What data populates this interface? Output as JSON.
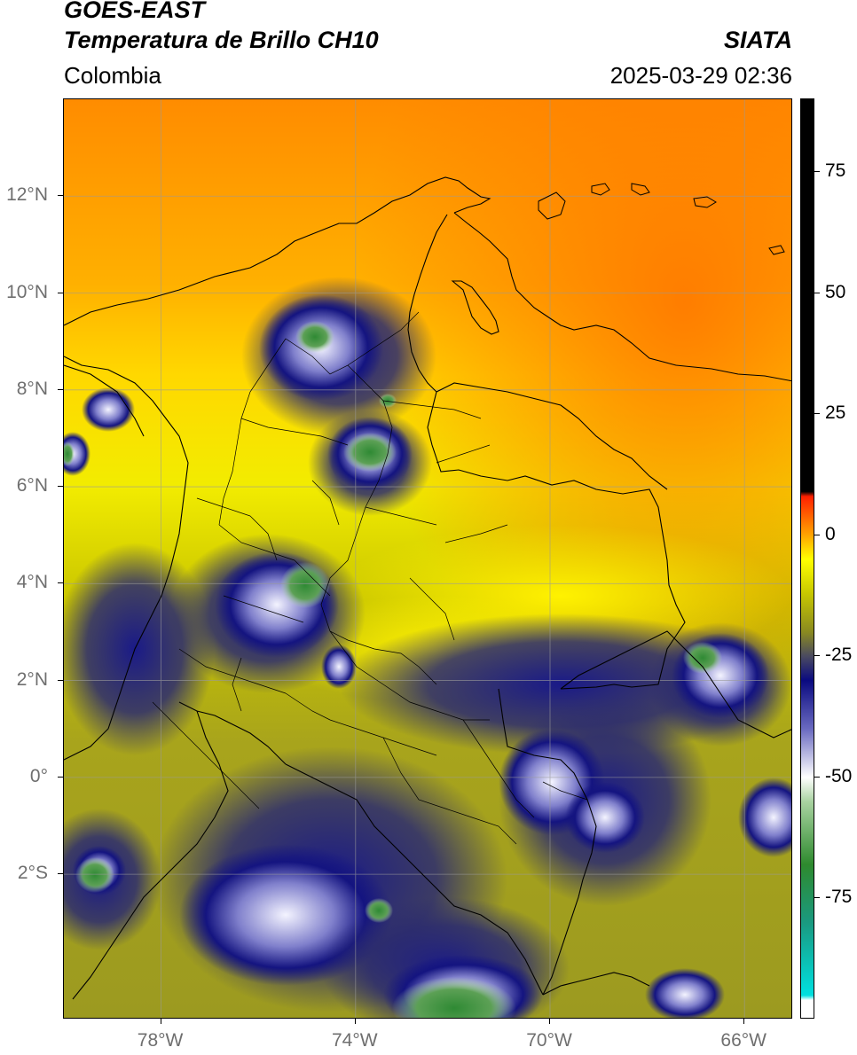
{
  "header": {
    "satellite": "GOES-EAST",
    "product": "Temperatura de Brillo CH10",
    "region": "Colombia",
    "organization": "SIATA",
    "timestamp": "2025-03-29 02:36"
  },
  "axes": {
    "lat_labels": [
      {
        "text": "12°N",
        "lat": 12
      },
      {
        "text": "10°N",
        "lat": 10
      },
      {
        "text": "8°N",
        "lat": 8
      },
      {
        "text": "6°N",
        "lat": 6
      },
      {
        "text": "4°N",
        "lat": 4
      },
      {
        "text": "2°N",
        "lat": 2
      },
      {
        "text": "0°",
        "lat": 0
      },
      {
        "text": "2°S",
        "lat": -2
      }
    ],
    "lon_labels": [
      {
        "text": "78°W",
        "lon": -78
      },
      {
        "text": "74°W",
        "lon": -74
      },
      {
        "text": "70°W",
        "lon": -70
      },
      {
        "text": "66°W",
        "lon": -66
      }
    ],
    "lon_range": [
      -80,
      -65
    ],
    "lat_range": [
      -5,
      14
    ]
  },
  "colorbar": {
    "range": [
      -100,
      90
    ],
    "ticks": [
      "75",
      "50",
      "25",
      "0",
      "-25",
      "-50",
      "-75"
    ],
    "tick_values": [
      75,
      50,
      25,
      0,
      -25,
      -50,
      -75
    ],
    "stops": [
      {
        "value": -100,
        "color": "#ffffff"
      },
      {
        "value": -96,
        "color": "#ffffff"
      },
      {
        "value": -95,
        "color": "#00e0e0"
      },
      {
        "value": -80,
        "color": "#1a9a80"
      },
      {
        "value": -68,
        "color": "#2e8a2e"
      },
      {
        "value": -55,
        "color": "#a9d3a1"
      },
      {
        "value": -50,
        "color": "#ffffff"
      },
      {
        "value": -40,
        "color": "#6a6ac0"
      },
      {
        "value": -30,
        "color": "#0a0a80"
      },
      {
        "value": -25,
        "color": "#4a4a60"
      },
      {
        "value": -20,
        "color": "#8a8a20"
      },
      {
        "value": -12,
        "color": "#c8c800"
      },
      {
        "value": -5,
        "color": "#ffff00"
      },
      {
        "value": 0,
        "color": "#ffa500"
      },
      {
        "value": 8,
        "color": "#ff2000"
      },
      {
        "value": 9,
        "color": "#000000"
      },
      {
        "value": 90,
        "color": "#000000"
      }
    ]
  },
  "colors": {
    "ocean_north": "#ff8a00",
    "land_warm": "#e8e000",
    "cloud_mid": "#a5a21c",
    "cloud_cold": "#141480",
    "cloud_coldest": "#f2f2ff",
    "overshoot": "#3c8c3c",
    "border": "#000000",
    "grid": "#9a9a9a"
  }
}
